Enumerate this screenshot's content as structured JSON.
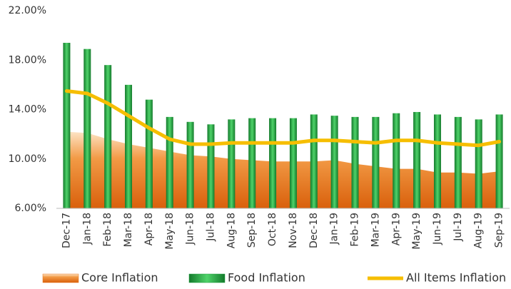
{
  "chart_data": {
    "type": "combo",
    "categories": [
      "Dec-17",
      "Jan-18",
      "Feb-18",
      "Mar-18",
      "Apr-18",
      "May-18",
      "Jun-18",
      "Jul-18",
      "Aug-18",
      "Sep-18",
      "Oct-18",
      "Nov-18",
      "Dec-18",
      "Jan-19",
      "Feb-19",
      "Mar-19",
      "Apr-19",
      "May-19",
      "Jun-19",
      "Jul-19",
      "Aug-19",
      "Sep-19"
    ],
    "series": [
      {
        "name": "Core Inflation",
        "mark": "area",
        "color": "#e8761c",
        "values": [
          12.2,
          12.1,
          11.6,
          11.2,
          10.9,
          10.6,
          10.3,
          10.2,
          10.0,
          9.9,
          9.8,
          9.8,
          9.8,
          9.9,
          9.6,
          9.4,
          9.2,
          9.2,
          8.9,
          8.9,
          8.8,
          9.0
        ]
      },
      {
        "name": "Food Inflation",
        "mark": "bar",
        "color": "#1e9a3c",
        "values": [
          19.4,
          18.9,
          17.6,
          16.0,
          14.8,
          13.4,
          13.0,
          12.8,
          13.2,
          13.3,
          13.3,
          13.3,
          13.6,
          13.5,
          13.4,
          13.4,
          13.7,
          13.8,
          13.6,
          13.4,
          13.2,
          13.6
        ]
      },
      {
        "name": "All Items Inflation",
        "mark": "line",
        "color": "#f6be00",
        "values": [
          15.5,
          15.3,
          14.5,
          13.5,
          12.5,
          11.6,
          11.2,
          11.2,
          11.3,
          11.3,
          11.3,
          11.3,
          11.5,
          11.5,
          11.4,
          11.3,
          11.5,
          11.5,
          11.3,
          11.2,
          11.1,
          11.4
        ]
      }
    ],
    "ylim": [
      6,
      22
    ],
    "yticks": [
      {
        "value": 6,
        "label": "6.00%"
      },
      {
        "value": 10,
        "label": "10.00%"
      },
      {
        "value": 14,
        "label": "14.00%"
      },
      {
        "value": 18,
        "label": "18.00%"
      },
      {
        "value": 22,
        "label": "22.00%"
      }
    ],
    "grid": false,
    "legend": "bottom"
  }
}
